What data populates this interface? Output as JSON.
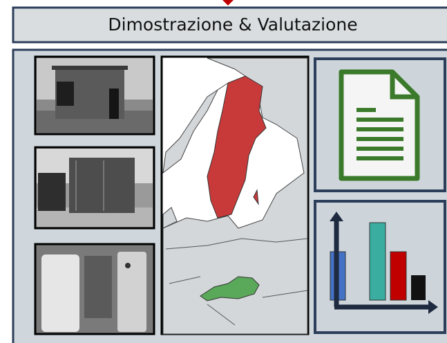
{
  "header": {
    "title": "Dimostrazione & Valutazione"
  }
}
